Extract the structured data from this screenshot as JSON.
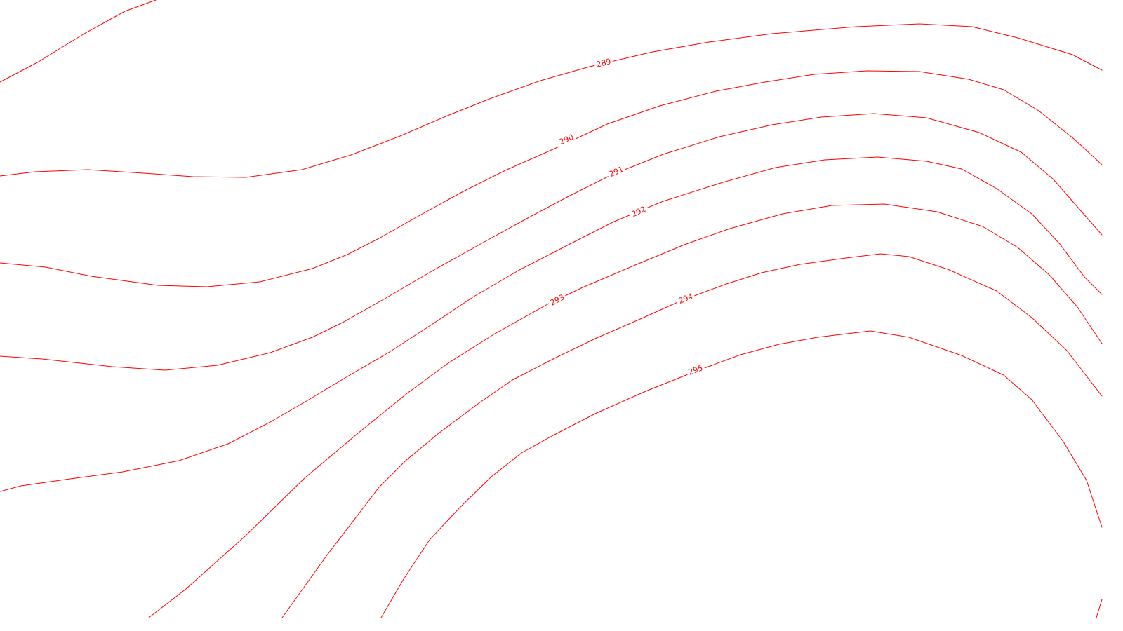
{
  "map": {
    "line_color": "#ff0000",
    "background_color": "#ffffff",
    "contour_labels": [
      "289",
      "290",
      "291",
      "292",
      "293",
      "294",
      "295"
    ]
  }
}
